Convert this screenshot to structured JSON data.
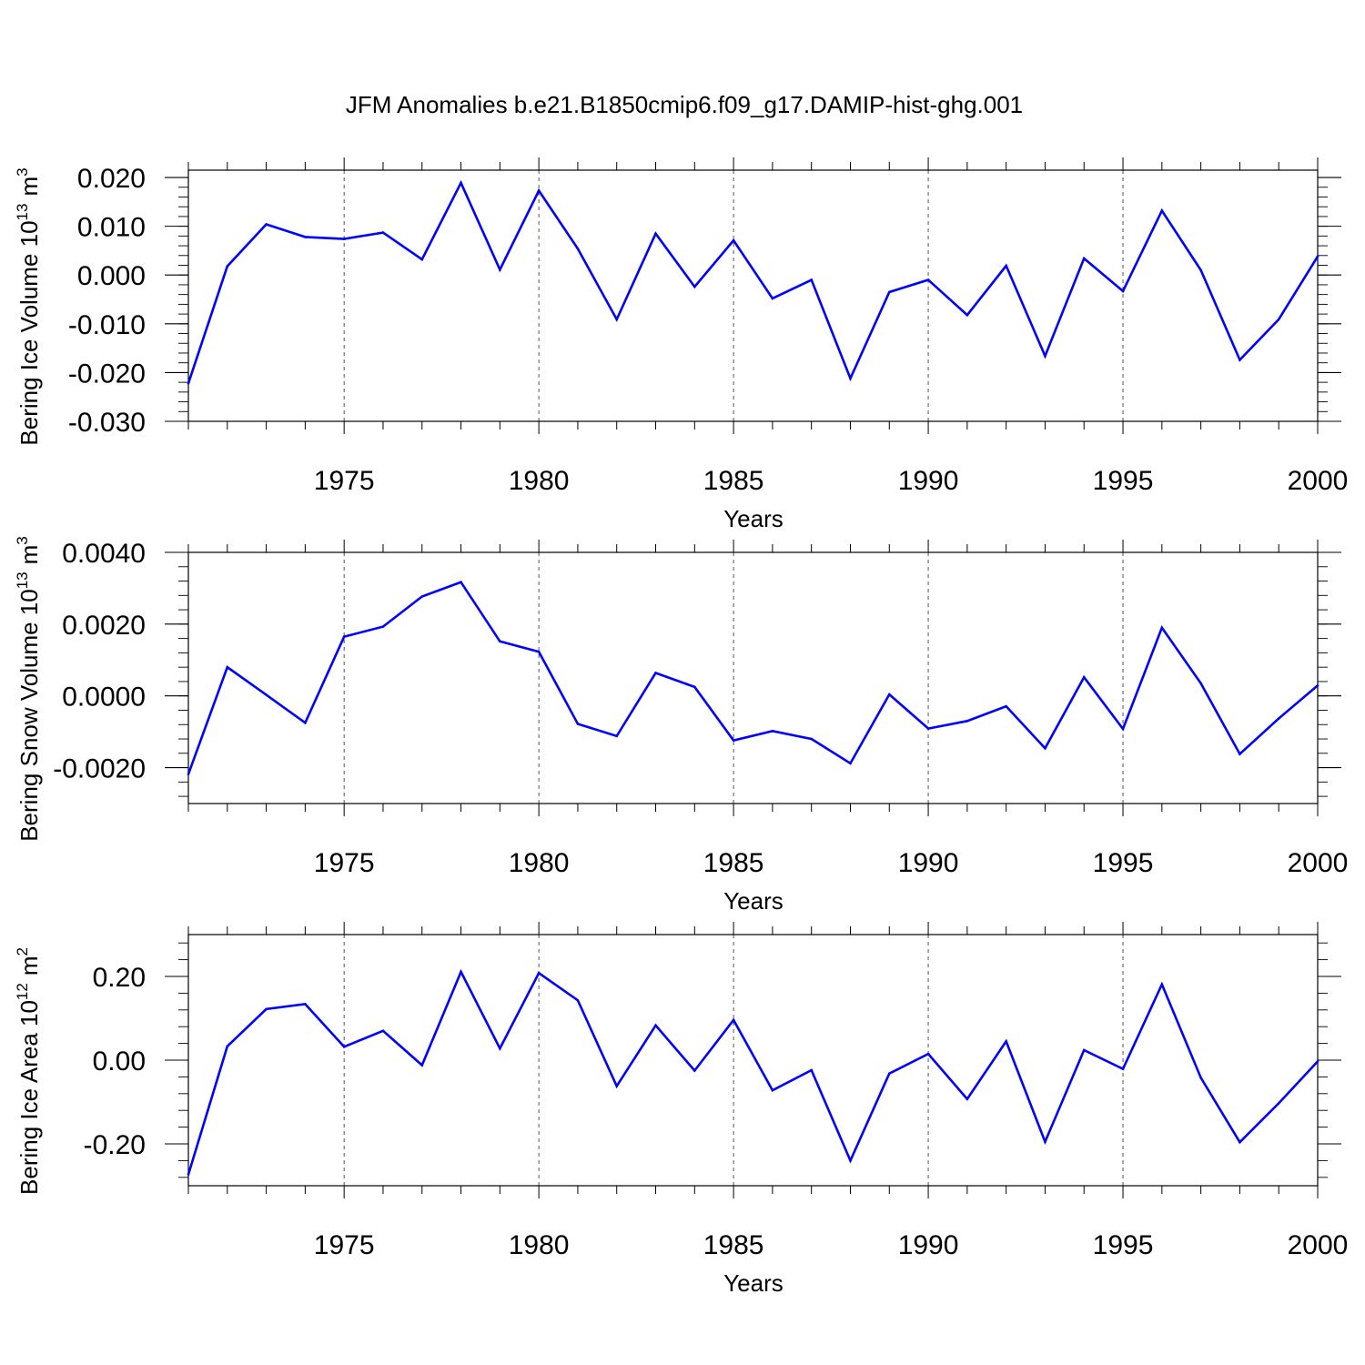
{
  "title": "JFM Anomalies b.e21.B1850cmip6.f09_g17.DAMIP-hist-ghg.001",
  "colors": {
    "series": "#0000ff",
    "axis": "#000000",
    "grid": "#555555",
    "background": "#ffffff"
  },
  "chart_data": [
    {
      "type": "line",
      "ylabel_main": "Bering Ice Volume 10",
      "ylabel_sup": "13",
      "ylabel_unit": "m",
      "ylabel_unit_sup": "3",
      "xlabel": "Years",
      "xlim": [
        1971,
        2000
      ],
      "ylim": [
        -0.03,
        0.0215
      ],
      "yticks": [
        -0.03,
        -0.02,
        -0.01,
        0.0,
        0.01,
        0.02
      ],
      "ytick_labels": [
        "-0.030",
        "-0.020",
        "-0.010",
        "0.000",
        "0.010",
        "0.020"
      ],
      "yminor_step": 0.002,
      "xticks": [
        1975,
        1980,
        1985,
        1990,
        1995,
        2000
      ],
      "xtick_labels": [
        "1975",
        "1980",
        "1985",
        "1990",
        "1995",
        "2000"
      ],
      "grid": "vertical dashed at major x ticks",
      "series": [
        {
          "name": "Bering Ice Volume anomaly",
          "x": [
            1971,
            1972,
            1973,
            1974,
            1975,
            1976,
            1977,
            1978,
            1979,
            1980,
            1981,
            1982,
            1983,
            1984,
            1985,
            1986,
            1987,
            1988,
            1989,
            1990,
            1991,
            1992,
            1993,
            1994,
            1995,
            1996,
            1997,
            1998,
            1999,
            2000
          ],
          "values": [
            -0.0222,
            0.0018,
            0.0104,
            0.0078,
            0.0074,
            0.0087,
            0.0032,
            0.0189,
            0.0011,
            0.0173,
            0.0054,
            -0.0091,
            0.0085,
            -0.0024,
            0.0071,
            -0.0048,
            -0.001,
            -0.0212,
            -0.0035,
            -0.001,
            -0.0082,
            0.0019,
            -0.0166,
            0.0034,
            -0.0033,
            0.0132,
            0.001,
            -0.0174,
            -0.0091,
            0.0038
          ]
        }
      ]
    },
    {
      "type": "line",
      "ylabel_main": "Bering Snow Volume 10",
      "ylabel_sup": "13",
      "ylabel_unit": "m",
      "ylabel_unit_sup": "3",
      "xlabel": "Years",
      "xlim": [
        1971,
        2000
      ],
      "ylim": [
        -0.003,
        0.004
      ],
      "yticks": [
        -0.002,
        0.0,
        0.002,
        0.004
      ],
      "ytick_labels": [
        "-0.0020",
        "0.0000",
        "0.0020",
        "0.0040"
      ],
      "yminor_step": 0.0004,
      "xticks": [
        1975,
        1980,
        1985,
        1990,
        1995,
        2000
      ],
      "xtick_labels": [
        "1975",
        "1980",
        "1985",
        "1990",
        "1995",
        "2000"
      ],
      "grid": "vertical dashed at major x ticks",
      "series": [
        {
          "name": "Bering Snow Volume anomaly",
          "x": [
            1971,
            1972,
            1973,
            1974,
            1975,
            1976,
            1977,
            1978,
            1979,
            1980,
            1981,
            1982,
            1983,
            1984,
            1985,
            1986,
            1987,
            1988,
            1989,
            1990,
            1991,
            1992,
            1993,
            1994,
            1995,
            1996,
            1997,
            1998,
            1999,
            2000
          ],
          "values": [
            -0.00218,
            0.0008,
            3e-05,
            -0.00075,
            0.00165,
            0.00193,
            0.00277,
            0.00317,
            0.00152,
            0.00123,
            -0.00078,
            -0.00112,
            0.00064,
            0.00025,
            -0.00124,
            -0.00098,
            -0.0012,
            -0.00188,
            4e-05,
            -0.00091,
            -0.0007,
            -0.00029,
            -0.00146,
            0.00052,
            -0.00092,
            0.0019,
            0.00035,
            -0.00162,
            -0.00063,
            0.00029
          ]
        }
      ]
    },
    {
      "type": "line",
      "ylabel_main": "Bering Ice Area 10",
      "ylabel_sup": "12",
      "ylabel_unit": "m",
      "ylabel_unit_sup": "2",
      "xlabel": "Years",
      "xlim": [
        1971,
        2000
      ],
      "ylim": [
        -0.3,
        0.3
      ],
      "yticks": [
        -0.2,
        0.0,
        0.2
      ],
      "ytick_labels": [
        "-0.20",
        "0.00",
        "0.20"
      ],
      "yminor_step": 0.04,
      "xticks": [
        1975,
        1980,
        1985,
        1990,
        1995,
        2000
      ],
      "xtick_labels": [
        "1975",
        "1980",
        "1985",
        "1990",
        "1995",
        "2000"
      ],
      "grid": "vertical dashed at major x ticks",
      "series": [
        {
          "name": "Bering Ice Area anomaly",
          "x": [
            1971,
            1972,
            1973,
            1974,
            1975,
            1976,
            1977,
            1978,
            1979,
            1980,
            1981,
            1982,
            1983,
            1984,
            1985,
            1986,
            1987,
            1988,
            1989,
            1990,
            1991,
            1992,
            1993,
            1994,
            1995,
            1996,
            1997,
            1998,
            1999,
            2000
          ],
          "values": [
            -0.273,
            0.033,
            0.122,
            0.134,
            0.032,
            0.07,
            -0.012,
            0.211,
            0.028,
            0.208,
            0.143,
            -0.062,
            0.083,
            -0.025,
            0.096,
            -0.072,
            -0.024,
            -0.24,
            -0.032,
            0.015,
            -0.093,
            0.045,
            -0.195,
            0.024,
            -0.021,
            0.181,
            -0.042,
            -0.196,
            -0.103,
            -0.003
          ]
        }
      ]
    }
  ]
}
